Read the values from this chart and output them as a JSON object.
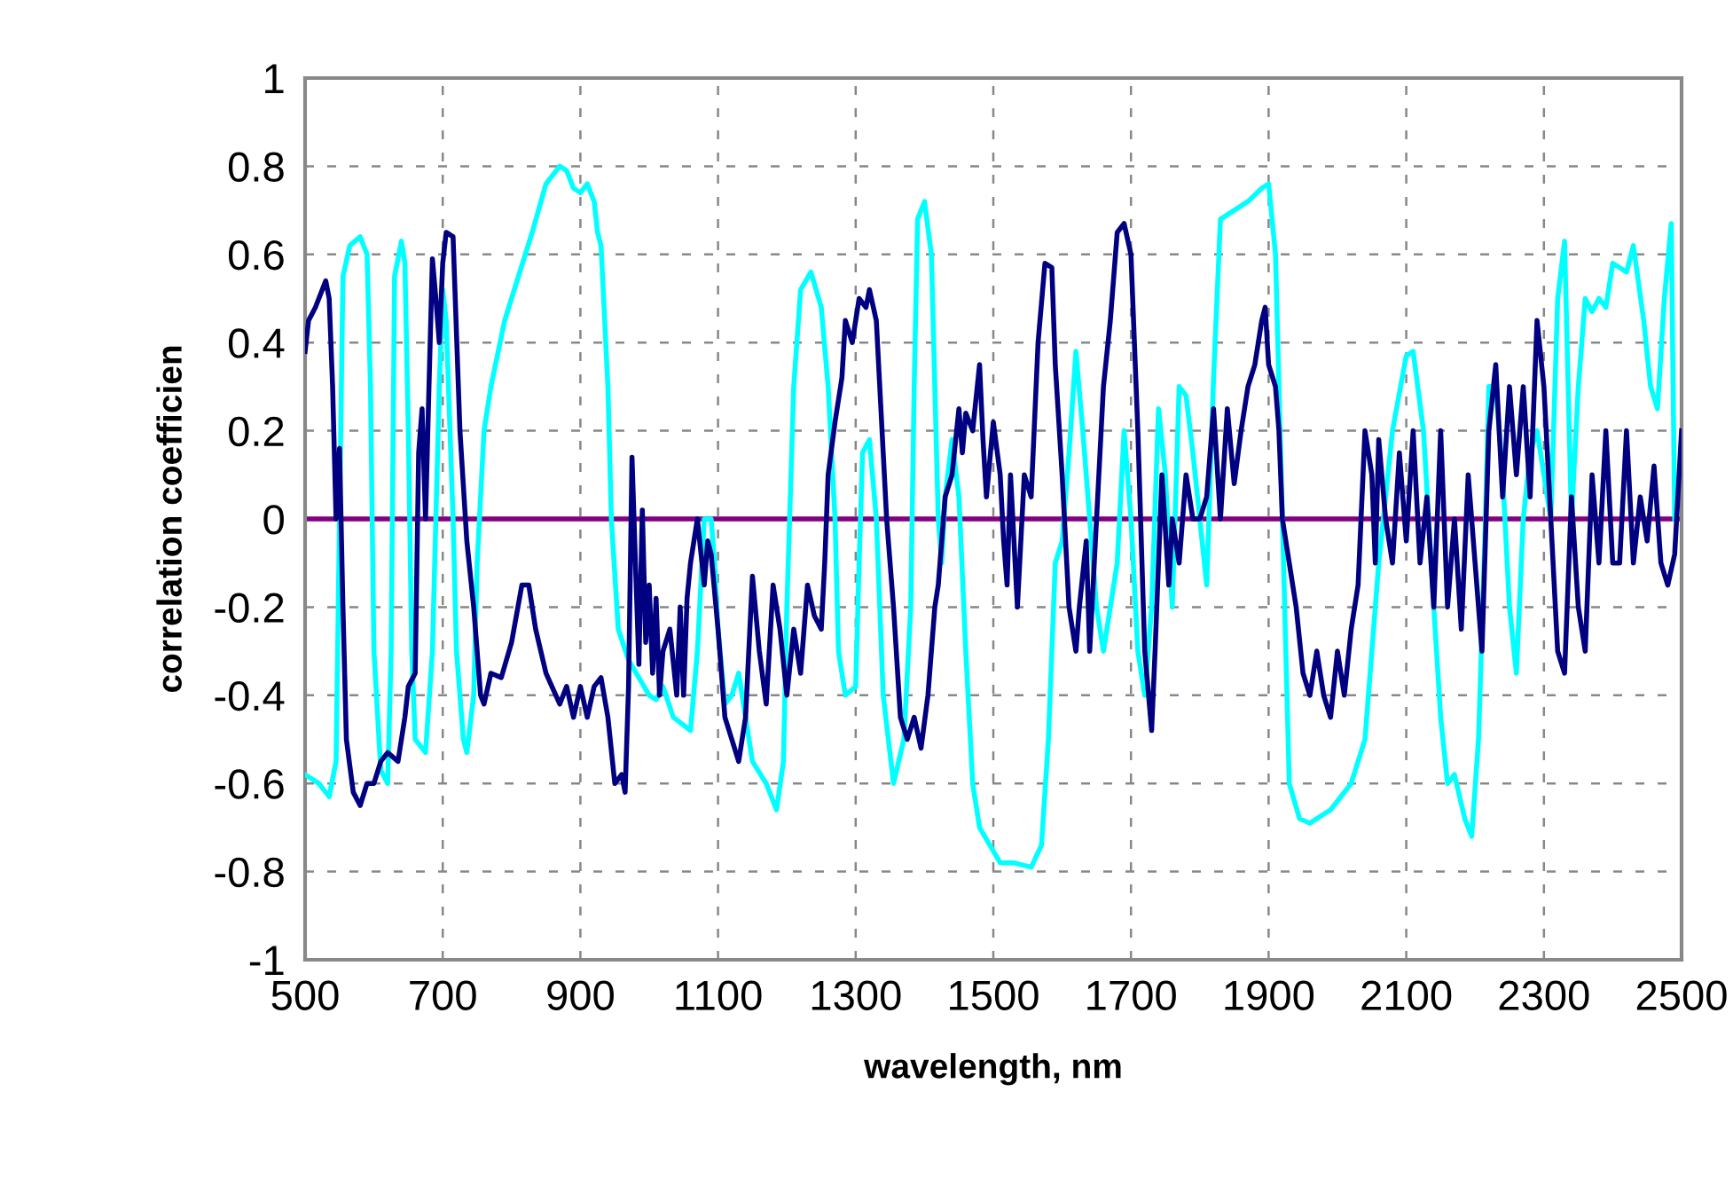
{
  "chart_data": {
    "type": "line",
    "xlabel": "wavelength, nm",
    "ylabel": "correlation coefficien",
    "xlim": [
      500,
      2500
    ],
    "xticks": [
      500,
      700,
      900,
      1100,
      1300,
      1500,
      1700,
      1900,
      2100,
      2300,
      2500
    ],
    "ylim": [
      -1,
      1
    ],
    "yticks": [
      -1,
      -0.8,
      -0.6,
      -0.4,
      -0.2,
      0,
      0.2,
      0.4,
      0.6,
      0.8,
      1
    ],
    "grid": true,
    "line_style": "solid",
    "marker": "none",
    "ref_lines": [
      {
        "axis": "y",
        "value": 0,
        "color": "#800080"
      }
    ],
    "series": [
      {
        "color": "#00ffff",
        "x": [
          500,
          520,
          535,
          545,
          550,
          555,
          565,
          580,
          590,
          595,
          600,
          610,
          620,
          625,
          630,
          640,
          645,
          650,
          655,
          660,
          675,
          685,
          690,
          695,
          700,
          705,
          715,
          720,
          730,
          735,
          745,
          750,
          760,
          770,
          790,
          810,
          830,
          850,
          870,
          880,
          890,
          900,
          910,
          920,
          925,
          930,
          940,
          945,
          955,
          970,
          985,
          1000,
          1010,
          1020,
          1035,
          1060,
          1070,
          1080,
          1090,
          1095,
          1100,
          1110,
          1120,
          1130,
          1140,
          1150,
          1170,
          1185,
          1195,
          1200,
          1210,
          1220,
          1235,
          1250,
          1260,
          1270,
          1275,
          1285,
          1300,
          1305,
          1310,
          1320,
          1330,
          1340,
          1355,
          1370,
          1380,
          1385,
          1390,
          1400,
          1410,
          1420,
          1425,
          1430,
          1440,
          1450,
          1460,
          1470,
          1480,
          1495,
          1510,
          1530,
          1555,
          1570,
          1580,
          1590,
          1600,
          1610,
          1620,
          1630,
          1640,
          1650,
          1660,
          1670,
          1680,
          1690,
          1700,
          1710,
          1720,
          1730,
          1740,
          1750,
          1760,
          1770,
          1780,
          1790,
          1800,
          1810,
          1820,
          1830,
          1850,
          1870,
          1890,
          1900,
          1910,
          1920,
          1930,
          1945,
          1960,
          1990,
          2020,
          2040,
          2060,
          2080,
          2100,
          2110,
          2125,
          2140,
          2150,
          2160,
          2170,
          2185,
          2195,
          2205,
          2215,
          2220,
          2230,
          2240,
          2250,
          2260,
          2270,
          2280,
          2290,
          2300,
          2310,
          2320,
          2330,
          2340,
          2350,
          2360,
          2370,
          2380,
          2390,
          2400,
          2420,
          2430,
          2445,
          2455,
          2465,
          2475,
          2485,
          2490
        ],
        "values": [
          -0.58,
          -0.6,
          -0.63,
          -0.55,
          0.0,
          0.55,
          0.62,
          0.64,
          0.6,
          0.3,
          -0.3,
          -0.57,
          -0.6,
          -0.3,
          0.55,
          0.63,
          0.58,
          0.2,
          -0.3,
          -0.5,
          -0.53,
          -0.3,
          0.0,
          0.3,
          0.52,
          0.45,
          0.0,
          -0.3,
          -0.5,
          -0.53,
          -0.4,
          -0.1,
          0.2,
          0.3,
          0.45,
          0.55,
          0.65,
          0.76,
          0.8,
          0.79,
          0.75,
          0.74,
          0.76,
          0.72,
          0.65,
          0.62,
          0.3,
          0.0,
          -0.25,
          -0.32,
          -0.36,
          -0.4,
          -0.41,
          -0.38,
          -0.45,
          -0.48,
          -0.3,
          0.0,
          0.0,
          -0.1,
          -0.25,
          -0.42,
          -0.4,
          -0.35,
          -0.45,
          -0.55,
          -0.6,
          -0.66,
          -0.55,
          -0.2,
          0.3,
          0.52,
          0.56,
          0.48,
          0.3,
          0.0,
          -0.3,
          -0.4,
          -0.38,
          -0.1,
          0.15,
          0.18,
          0.0,
          -0.4,
          -0.6,
          -0.5,
          -0.2,
          0.3,
          0.68,
          0.72,
          0.6,
          0.0,
          -0.1,
          0.05,
          0.18,
          0.05,
          -0.3,
          -0.6,
          -0.7,
          -0.74,
          -0.78,
          -0.78,
          -0.79,
          -0.74,
          -0.5,
          -0.1,
          -0.05,
          0.15,
          0.38,
          0.2,
          0.0,
          -0.2,
          -0.3,
          -0.2,
          -0.1,
          0.2,
          0.0,
          -0.3,
          -0.4,
          -0.2,
          0.25,
          0.1,
          -0.2,
          0.3,
          0.28,
          0.15,
          0.0,
          -0.15,
          0.32,
          0.68,
          0.7,
          0.72,
          0.75,
          0.76,
          0.6,
          0.0,
          -0.6,
          -0.68,
          -0.69,
          -0.66,
          -0.6,
          -0.5,
          -0.1,
          0.2,
          0.37,
          0.38,
          0.2,
          -0.2,
          -0.45,
          -0.6,
          -0.58,
          -0.68,
          -0.72,
          -0.5,
          0.0,
          0.3,
          0.3,
          0.1,
          -0.2,
          -0.35,
          0.0,
          0.15,
          0.2,
          0.1,
          0.0,
          0.5,
          0.63,
          0.0,
          0.3,
          0.5,
          0.47,
          0.5,
          0.48,
          0.58,
          0.56,
          0.62,
          0.45,
          0.3,
          0.25,
          0.5,
          0.67,
          0.0
        ]
      },
      {
        "color": "#000080",
        "x": [
          500,
          505,
          515,
          525,
          530,
          535,
          540,
          545,
          550,
          555,
          560,
          570,
          580,
          590,
          600,
          610,
          620,
          635,
          645,
          650,
          660,
          665,
          670,
          675,
          680,
          685,
          690,
          695,
          700,
          705,
          715,
          725,
          735,
          745,
          755,
          760,
          770,
          785,
          800,
          815,
          825,
          835,
          850,
          870,
          880,
          890,
          900,
          910,
          920,
          930,
          940,
          950,
          960,
          965,
          970,
          975,
          980,
          985,
          990,
          995,
          1000,
          1005,
          1010,
          1015,
          1020,
          1030,
          1040,
          1045,
          1050,
          1055,
          1060,
          1070,
          1080,
          1085,
          1090,
          1100,
          1110,
          1120,
          1130,
          1140,
          1150,
          1160,
          1170,
          1180,
          1190,
          1200,
          1210,
          1220,
          1230,
          1240,
          1250,
          1255,
          1260,
          1270,
          1280,
          1285,
          1295,
          1305,
          1315,
          1320,
          1330,
          1345,
          1355,
          1365,
          1375,
          1385,
          1395,
          1405,
          1415,
          1420,
          1430,
          1440,
          1450,
          1455,
          1460,
          1470,
          1480,
          1485,
          1490,
          1500,
          1510,
          1515,
          1520,
          1525,
          1535,
          1540,
          1545,
          1555,
          1565,
          1575,
          1585,
          1590,
          1600,
          1610,
          1620,
          1625,
          1635,
          1640,
          1650,
          1660,
          1670,
          1680,
          1690,
          1700,
          1710,
          1720,
          1730,
          1735,
          1745,
          1755,
          1760,
          1770,
          1780,
          1790,
          1800,
          1810,
          1820,
          1830,
          1840,
          1850,
          1860,
          1870,
          1880,
          1890,
          1895,
          1900,
          1910,
          1915,
          1920,
          1930,
          1940,
          1950,
          1960,
          1970,
          1980,
          1990,
          2000,
          2010,
          2020,
          2030,
          2040,
          2050,
          2055,
          2060,
          2070,
          2080,
          2090,
          2100,
          2110,
          2120,
          2130,
          2140,
          2150,
          2160,
          2170,
          2180,
          2190,
          2200,
          2210,
          2220,
          2230,
          2240,
          2250,
          2260,
          2270,
          2280,
          2290,
          2300,
          2310,
          2320,
          2330,
          2340,
          2350,
          2360,
          2370,
          2380,
          2390,
          2400,
          2410,
          2420,
          2430,
          2440,
          2450,
          2460,
          2470,
          2480,
          2490,
          2500
        ],
        "values": [
          0.38,
          0.45,
          0.48,
          0.52,
          0.54,
          0.5,
          0.3,
          0.0,
          0.16,
          -0.2,
          -0.5,
          -0.62,
          -0.65,
          -0.6,
          -0.6,
          -0.55,
          -0.53,
          -0.55,
          -0.45,
          -0.38,
          -0.35,
          0.15,
          0.25,
          0.0,
          0.3,
          0.59,
          0.5,
          0.4,
          0.58,
          0.65,
          0.64,
          0.2,
          -0.05,
          -0.2,
          -0.4,
          -0.42,
          -0.35,
          -0.36,
          -0.28,
          -0.15,
          -0.15,
          -0.25,
          -0.35,
          -0.42,
          -0.38,
          -0.45,
          -0.38,
          -0.45,
          -0.38,
          -0.36,
          -0.45,
          -0.6,
          -0.58,
          -0.62,
          -0.38,
          0.14,
          -0.1,
          -0.33,
          0.02,
          -0.28,
          -0.15,
          -0.35,
          -0.18,
          -0.4,
          -0.3,
          -0.25,
          -0.4,
          -0.2,
          -0.4,
          -0.18,
          -0.1,
          0.0,
          -0.15,
          -0.05,
          -0.08,
          -0.25,
          -0.45,
          -0.5,
          -0.55,
          -0.45,
          -0.13,
          -0.3,
          -0.42,
          -0.15,
          -0.25,
          -0.4,
          -0.25,
          -0.35,
          -0.15,
          -0.22,
          -0.25,
          -0.1,
          0.1,
          0.22,
          0.32,
          0.45,
          0.4,
          0.5,
          0.48,
          0.52,
          0.45,
          0.0,
          -0.2,
          -0.45,
          -0.5,
          -0.45,
          -0.52,
          -0.4,
          -0.2,
          -0.15,
          0.05,
          0.1,
          0.25,
          0.15,
          0.24,
          0.2,
          0.35,
          0.18,
          0.05,
          0.22,
          0.1,
          -0.05,
          -0.15,
          0.1,
          -0.2,
          -0.05,
          0.1,
          0.05,
          0.4,
          0.58,
          0.57,
          0.35,
          0.1,
          -0.2,
          -0.3,
          -0.2,
          -0.05,
          -0.3,
          0.0,
          0.3,
          0.45,
          0.65,
          0.67,
          0.6,
          0.2,
          -0.3,
          -0.48,
          -0.3,
          0.1,
          -0.15,
          0.0,
          -0.1,
          0.1,
          0.0,
          0.0,
          0.05,
          0.25,
          0.0,
          0.25,
          0.08,
          0.2,
          0.3,
          0.35,
          0.45,
          0.48,
          0.35,
          0.3,
          0.2,
          0.0,
          -0.1,
          -0.2,
          -0.35,
          -0.4,
          -0.3,
          -0.4,
          -0.45,
          -0.3,
          -0.4,
          -0.25,
          -0.15,
          0.2,
          0.1,
          -0.1,
          0.18,
          0.0,
          -0.1,
          0.15,
          -0.05,
          0.2,
          -0.1,
          0.05,
          -0.2,
          0.2,
          -0.2,
          0.0,
          -0.25,
          0.1,
          -0.1,
          -0.3,
          0.2,
          0.35,
          0.05,
          0.3,
          0.1,
          0.3,
          0.05,
          0.45,
          0.3,
          0.0,
          -0.3,
          -0.35,
          0.05,
          -0.2,
          -0.3,
          0.1,
          -0.1,
          0.2,
          -0.1,
          -0.1,
          0.2,
          -0.1,
          0.05,
          -0.05,
          0.12,
          -0.1,
          -0.15,
          -0.08,
          0.2
        ]
      }
    ]
  }
}
